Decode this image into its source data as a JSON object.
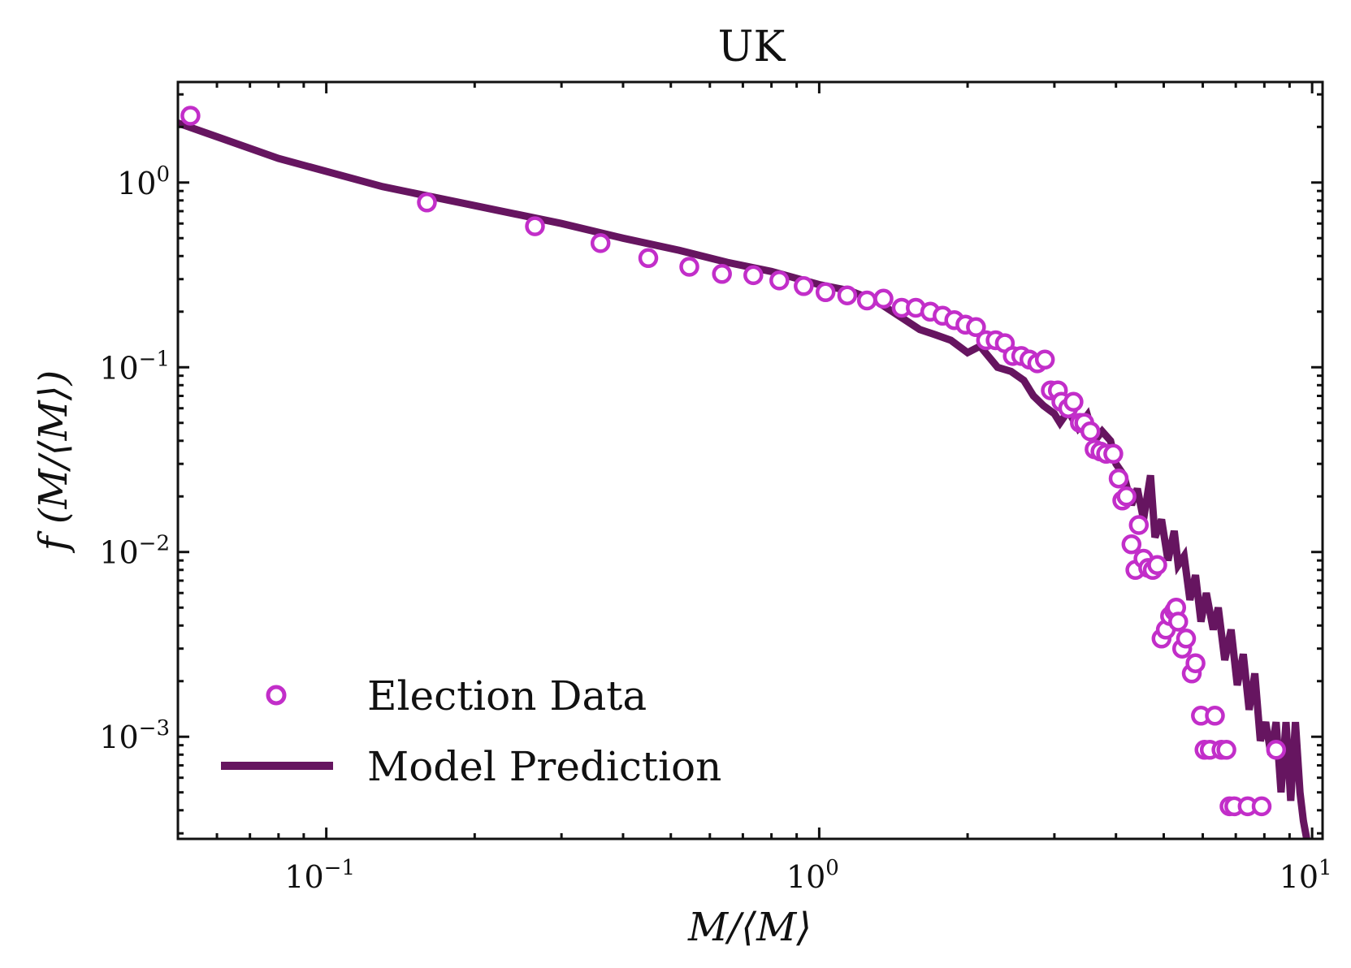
{
  "chart_data": {
    "type": "scatter",
    "title": "UK",
    "xlabel": "M/⟨M⟩",
    "ylabel": "f (M/⟨M⟩)",
    "xscale": "log",
    "yscale": "log",
    "xlim": [
      0.05,
      10.5
    ],
    "ylim": [
      0.00028,
      3.5
    ],
    "grid": false,
    "legend_position": "lower-left",
    "x_ticks": [
      {
        "value": 0.1,
        "base": "10",
        "exp": "−1"
      },
      {
        "value": 1,
        "base": "10",
        "exp": "0"
      },
      {
        "value": 10,
        "base": "10",
        "exp": "1"
      }
    ],
    "y_ticks": [
      {
        "value": 1,
        "base": "10",
        "exp": "0"
      },
      {
        "value": 0.1,
        "base": "10",
        "exp": "−1"
      },
      {
        "value": 0.01,
        "base": "10",
        "exp": "−2"
      },
      {
        "value": 0.001,
        "base": "10",
        "exp": "−3"
      }
    ],
    "series": [
      {
        "name": "Election Data",
        "kind": "markers",
        "marker": "open-circle",
        "color": "#c22ec9",
        "points": [
          [
            0.053,
            2.3
          ],
          [
            0.16,
            0.78
          ],
          [
            0.265,
            0.58
          ],
          [
            0.36,
            0.47
          ],
          [
            0.45,
            0.39
          ],
          [
            0.545,
            0.35
          ],
          [
            0.635,
            0.32
          ],
          [
            0.735,
            0.315
          ],
          [
            0.83,
            0.295
          ],
          [
            0.93,
            0.275
          ],
          [
            1.03,
            0.255
          ],
          [
            1.14,
            0.245
          ],
          [
            1.25,
            0.23
          ],
          [
            1.35,
            0.235
          ],
          [
            1.47,
            0.21
          ],
          [
            1.57,
            0.21
          ],
          [
            1.68,
            0.2
          ],
          [
            1.78,
            0.19
          ],
          [
            1.88,
            0.18
          ],
          [
            1.98,
            0.17
          ],
          [
            2.08,
            0.165
          ],
          [
            2.18,
            0.14
          ],
          [
            2.28,
            0.14
          ],
          [
            2.38,
            0.135
          ],
          [
            2.47,
            0.115
          ],
          [
            2.57,
            0.115
          ],
          [
            2.67,
            0.11
          ],
          [
            2.77,
            0.105
          ],
          [
            2.87,
            0.11
          ],
          [
            2.95,
            0.075
          ],
          [
            3.05,
            0.075
          ],
          [
            3.1,
            0.065
          ],
          [
            3.2,
            0.06
          ],
          [
            3.28,
            0.065
          ],
          [
            3.38,
            0.05
          ],
          [
            3.45,
            0.05
          ],
          [
            3.55,
            0.045
          ],
          [
            3.62,
            0.036
          ],
          [
            3.72,
            0.035
          ],
          [
            3.82,
            0.034
          ],
          [
            3.95,
            0.034
          ],
          [
            4.05,
            0.025
          ],
          [
            4.12,
            0.019
          ],
          [
            4.2,
            0.02
          ],
          [
            4.3,
            0.011
          ],
          [
            4.38,
            0.008
          ],
          [
            4.45,
            0.014
          ],
          [
            4.55,
            0.0092
          ],
          [
            4.65,
            0.0082
          ],
          [
            4.75,
            0.008
          ],
          [
            4.85,
            0.0085
          ],
          [
            4.95,
            0.0034
          ],
          [
            5.05,
            0.0038
          ],
          [
            5.15,
            0.0045
          ],
          [
            5.25,
            0.0048
          ],
          [
            5.3,
            0.005
          ],
          [
            5.35,
            0.0042
          ],
          [
            5.45,
            0.003
          ],
          [
            5.55,
            0.0034
          ],
          [
            5.7,
            0.0022
          ],
          [
            5.8,
            0.0025
          ],
          [
            5.95,
            0.0013
          ],
          [
            6.05,
            0.00085
          ],
          [
            6.2,
            0.00085
          ],
          [
            6.35,
            0.0013
          ],
          [
            6.55,
            0.00085
          ],
          [
            6.7,
            0.00085
          ],
          [
            6.8,
            0.00042
          ],
          [
            6.95,
            0.00042
          ],
          [
            7.4,
            0.00042
          ],
          [
            7.9,
            0.00042
          ],
          [
            8.45,
            0.00085
          ]
        ]
      },
      {
        "name": "Model Prediction",
        "kind": "line",
        "color": "#661560",
        "points": [
          [
            0.05,
            2.1
          ],
          [
            0.08,
            1.35
          ],
          [
            0.13,
            0.95
          ],
          [
            0.2,
            0.75
          ],
          [
            0.3,
            0.6
          ],
          [
            0.4,
            0.5
          ],
          [
            0.52,
            0.43
          ],
          [
            0.65,
            0.37
          ],
          [
            0.8,
            0.33
          ],
          [
            1.0,
            0.28
          ],
          [
            1.15,
            0.26
          ],
          [
            1.3,
            0.23
          ],
          [
            1.45,
            0.19
          ],
          [
            1.6,
            0.16
          ],
          [
            1.72,
            0.15
          ],
          [
            1.85,
            0.14
          ],
          [
            2.0,
            0.12
          ],
          [
            2.12,
            0.13
          ],
          [
            2.3,
            0.1
          ],
          [
            2.45,
            0.095
          ],
          [
            2.6,
            0.085
          ],
          [
            2.72,
            0.07
          ],
          [
            2.85,
            0.062
          ],
          [
            3.0,
            0.056
          ],
          [
            3.08,
            0.05
          ],
          [
            3.2,
            0.058
          ],
          [
            3.35,
            0.047
          ],
          [
            3.5,
            0.055
          ],
          [
            3.62,
            0.04
          ],
          [
            3.75,
            0.045
          ],
          [
            3.9,
            0.04
          ],
          [
            4.0,
            0.03
          ],
          [
            4.15,
            0.026
          ],
          [
            4.3,
            0.018
          ],
          [
            4.42,
            0.022
          ],
          [
            4.55,
            0.015
          ],
          [
            4.7,
            0.026
          ],
          [
            4.8,
            0.012
          ],
          [
            4.95,
            0.015
          ],
          [
            5.1,
            0.009
          ],
          [
            5.25,
            0.013
          ],
          [
            5.35,
            0.0085
          ],
          [
            5.5,
            0.0095
          ],
          [
            5.65,
            0.0055
          ],
          [
            5.8,
            0.0075
          ],
          [
            5.95,
            0.0042
          ],
          [
            6.1,
            0.006
          ],
          [
            6.3,
            0.0038
          ],
          [
            6.45,
            0.005
          ],
          [
            6.65,
            0.0026
          ],
          [
            6.85,
            0.0038
          ],
          [
            7.05,
            0.0019
          ],
          [
            7.25,
            0.0028
          ],
          [
            7.45,
            0.0014
          ],
          [
            7.65,
            0.0022
          ],
          [
            7.85,
            0.00095
          ],
          [
            8.05,
            0.0012
          ],
          [
            8.25,
            0.0008
          ],
          [
            8.45,
            0.0012
          ],
          [
            8.65,
            0.0005
          ],
          [
            8.85,
            0.0012
          ],
          [
            9.05,
            0.00045
          ],
          [
            9.25,
            0.0012
          ],
          [
            9.45,
            0.0005
          ],
          [
            9.6,
            0.00035
          ],
          [
            9.75,
            0.00028
          ]
        ]
      }
    ]
  }
}
